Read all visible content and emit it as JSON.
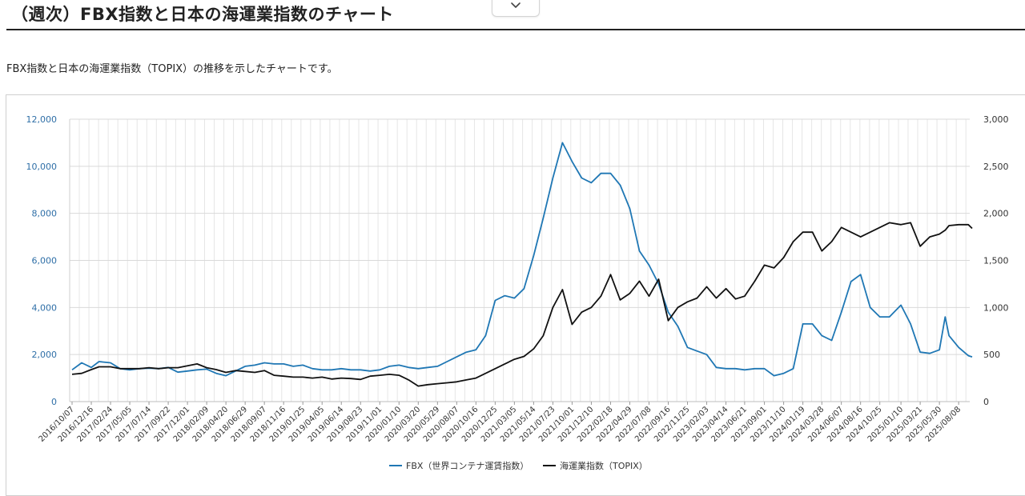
{
  "header": {
    "title": "（週次）FBX指数と日本の海運業指数のチャート",
    "description": "FBX指数と日本の海運業指数（TOPIX）の推移を示したチャートです。"
  },
  "icons": {
    "collapse": "chevron-down-icon"
  },
  "colors": {
    "fbx": "#1f77b4",
    "topix": "#111111",
    "left_axis": "#2f6fa7",
    "grid": "#d9d9d9"
  },
  "chart_data": {
    "type": "line",
    "title": "",
    "xlabel": "",
    "y_left": {
      "label": "",
      "lim": [
        0,
        12000
      ],
      "ticks": [
        "0",
        "2,000",
        "4,000",
        "6,000",
        "8,000",
        "10,000",
        "12,000"
      ]
    },
    "y_right": {
      "label": "",
      "lim": [
        0,
        3000
      ],
      "ticks": [
        "0",
        "500",
        "1,000",
        "1,500",
        "2,000",
        "2,500",
        "3,000"
      ]
    },
    "x_tick_labels": [
      "2016/10/07",
      "2016/12/16",
      "2017/02/24",
      "2017/05/05",
      "2017/07/14",
      "2017/09/22",
      "2017/12/01",
      "2018/02/09",
      "2018/04/20",
      "2018/06/29",
      "2018/09/07",
      "2018/11/16",
      "2019/01/25",
      "2019/04/05",
      "2019/06/14",
      "2019/08/23",
      "2019/11/01",
      "2020/01/10",
      "2020/03/20",
      "2020/05/29",
      "2020/08/07",
      "2020/10/16",
      "2020/12/25",
      "2021/03/05",
      "2021/05/14",
      "2021/07/23",
      "2021/10/01",
      "2021/12/10",
      "2022/02/18",
      "2022/04/29",
      "2022/07/08",
      "2022/09/16",
      "2022/11/25",
      "2023/02/03",
      "2023/04/14",
      "2023/06/21",
      "2023/09/01",
      "2023/11/10",
      "2024/01/19",
      "2024/03/28",
      "2024/06/07",
      "2024/08/16",
      "2024/10/25",
      "2025/01/10",
      "2025/03/21",
      "2025/05/30",
      "2025/08/08"
    ],
    "grid": true,
    "legend_position": "bottom-center",
    "series": [
      {
        "name": "FBX（世界コンテナ運賃指数）",
        "axis": "left",
        "points": [
          [
            "2016/10/07",
            1350
          ],
          [
            "2016/11/11",
            1650
          ],
          [
            "2016/12/16",
            1450
          ],
          [
            "2017/01/13",
            1700
          ],
          [
            "2017/02/24",
            1650
          ],
          [
            "2017/03/31",
            1400
          ],
          [
            "2017/05/05",
            1350
          ],
          [
            "2017/06/09",
            1400
          ],
          [
            "2017/07/14",
            1420
          ],
          [
            "2017/08/18",
            1400
          ],
          [
            "2017/09/22",
            1450
          ],
          [
            "2017/10/27",
            1250
          ],
          [
            "2017/12/01",
            1300
          ],
          [
            "2018/01/05",
            1350
          ],
          [
            "2018/02/09",
            1380
          ],
          [
            "2018/03/16",
            1200
          ],
          [
            "2018/04/20",
            1100
          ],
          [
            "2018/05/25",
            1300
          ],
          [
            "2018/06/29",
            1500
          ],
          [
            "2018/08/03",
            1550
          ],
          [
            "2018/09/07",
            1650
          ],
          [
            "2018/10/12",
            1600
          ],
          [
            "2018/11/16",
            1600
          ],
          [
            "2018/12/21",
            1500
          ],
          [
            "2019/01/25",
            1550
          ],
          [
            "2019/03/01",
            1400
          ],
          [
            "2019/04/05",
            1350
          ],
          [
            "2019/05/10",
            1350
          ],
          [
            "2019/06/14",
            1400
          ],
          [
            "2019/07/19",
            1350
          ],
          [
            "2019/08/23",
            1350
          ],
          [
            "2019/09/27",
            1300
          ],
          [
            "2019/11/01",
            1350
          ],
          [
            "2019/12/06",
            1500
          ],
          [
            "2020/01/10",
            1550
          ],
          [
            "2020/02/14",
            1450
          ],
          [
            "2020/03/20",
            1400
          ],
          [
            "2020/04/24",
            1450
          ],
          [
            "2020/05/29",
            1500
          ],
          [
            "2020/07/03",
            1700
          ],
          [
            "2020/08/07",
            1900
          ],
          [
            "2020/09/11",
            2100
          ],
          [
            "2020/10/16",
            2200
          ],
          [
            "2020/11/20",
            2800
          ],
          [
            "2020/12/25",
            4300
          ],
          [
            "2021/01/29",
            4500
          ],
          [
            "2021/03/05",
            4400
          ],
          [
            "2021/04/09",
            4800
          ],
          [
            "2021/05/14",
            6200
          ],
          [
            "2021/06/18",
            7800
          ],
          [
            "2021/07/23",
            9500
          ],
          [
            "2021/08/27",
            11000
          ],
          [
            "2021/10/01",
            10200
          ],
          [
            "2021/11/05",
            9500
          ],
          [
            "2021/12/10",
            9300
          ],
          [
            "2022/01/14",
            9700
          ],
          [
            "2022/02/18",
            9700
          ],
          [
            "2022/03/25",
            9200
          ],
          [
            "2022/04/29",
            8200
          ],
          [
            "2022/06/03",
            6400
          ],
          [
            "2022/07/08",
            5800
          ],
          [
            "2022/08/12",
            5000
          ],
          [
            "2022/09/16",
            3800
          ],
          [
            "2022/10/21",
            3200
          ],
          [
            "2022/11/25",
            2300
          ],
          [
            "2022/12/30",
            2150
          ],
          [
            "2023/02/03",
            2000
          ],
          [
            "2023/03/10",
            1450
          ],
          [
            "2023/04/14",
            1400
          ],
          [
            "2023/05/19",
            1400
          ],
          [
            "2023/06/21",
            1350
          ],
          [
            "2023/07/28",
            1400
          ],
          [
            "2023/09/01",
            1400
          ],
          [
            "2023/10/06",
            1100
          ],
          [
            "2023/11/10",
            1200
          ],
          [
            "2023/12/15",
            1400
          ],
          [
            "2024/01/19",
            3300
          ],
          [
            "2024/02/23",
            3300
          ],
          [
            "2024/03/28",
            2800
          ],
          [
            "2024/05/03",
            2600
          ],
          [
            "2024/06/07",
            3800
          ],
          [
            "2024/07/12",
            5100
          ],
          [
            "2024/08/16",
            5400
          ],
          [
            "2024/09/20",
            4000
          ],
          [
            "2024/10/25",
            3600
          ],
          [
            "2024/11/29",
            3600
          ],
          [
            "2025/01/10",
            4100
          ],
          [
            "2025/02/14",
            3300
          ],
          [
            "2025/03/21",
            2100
          ],
          [
            "2025/04/25",
            2050
          ],
          [
            "2025/05/30",
            2200
          ],
          [
            "2025/06/20",
            3600
          ],
          [
            "2025/07/04",
            2800
          ],
          [
            "2025/08/08",
            2300
          ],
          [
            "2025/09/12",
            1950
          ],
          [
            "2025/09/26",
            1900
          ]
        ]
      },
      {
        "name": "海運業指数（TOPIX）",
        "axis": "right",
        "points": [
          [
            "2016/10/07",
            290
          ],
          [
            "2016/11/11",
            300
          ],
          [
            "2016/12/16",
            340
          ],
          [
            "2017/01/13",
            370
          ],
          [
            "2017/02/24",
            370
          ],
          [
            "2017/03/31",
            350
          ],
          [
            "2017/05/05",
            350
          ],
          [
            "2017/06/09",
            350
          ],
          [
            "2017/07/14",
            360
          ],
          [
            "2017/08/18",
            350
          ],
          [
            "2017/09/22",
            360
          ],
          [
            "2017/10/27",
            360
          ],
          [
            "2017/12/01",
            380
          ],
          [
            "2018/01/05",
            400
          ],
          [
            "2018/02/09",
            360
          ],
          [
            "2018/03/16",
            340
          ],
          [
            "2018/04/20",
            310
          ],
          [
            "2018/05/25",
            330
          ],
          [
            "2018/06/29",
            320
          ],
          [
            "2018/08/03",
            310
          ],
          [
            "2018/09/07",
            330
          ],
          [
            "2018/10/12",
            280
          ],
          [
            "2018/11/16",
            270
          ],
          [
            "2018/12/21",
            260
          ],
          [
            "2019/01/25",
            260
          ],
          [
            "2019/03/01",
            250
          ],
          [
            "2019/04/05",
            260
          ],
          [
            "2019/05/10",
            240
          ],
          [
            "2019/06/14",
            250
          ],
          [
            "2019/07/19",
            245
          ],
          [
            "2019/08/23",
            235
          ],
          [
            "2019/09/27",
            270
          ],
          [
            "2019/11/01",
            280
          ],
          [
            "2019/12/06",
            290
          ],
          [
            "2020/01/10",
            280
          ],
          [
            "2020/02/14",
            230
          ],
          [
            "2020/03/20",
            165
          ],
          [
            "2020/04/24",
            180
          ],
          [
            "2020/05/29",
            190
          ],
          [
            "2020/07/03",
            200
          ],
          [
            "2020/08/07",
            210
          ],
          [
            "2020/09/11",
            230
          ],
          [
            "2020/10/16",
            250
          ],
          [
            "2020/11/20",
            300
          ],
          [
            "2020/12/25",
            350
          ],
          [
            "2021/01/29",
            400
          ],
          [
            "2021/03/05",
            450
          ],
          [
            "2021/04/09",
            480
          ],
          [
            "2021/05/14",
            560
          ],
          [
            "2021/06/18",
            700
          ],
          [
            "2021/07/23",
            1000
          ],
          [
            "2021/08/27",
            1190
          ],
          [
            "2021/10/01",
            820
          ],
          [
            "2021/11/05",
            950
          ],
          [
            "2021/12/10",
            1000
          ],
          [
            "2022/01/14",
            1120
          ],
          [
            "2022/02/18",
            1350
          ],
          [
            "2022/03/25",
            1080
          ],
          [
            "2022/04/29",
            1150
          ],
          [
            "2022/06/03",
            1280
          ],
          [
            "2022/07/08",
            1120
          ],
          [
            "2022/08/12",
            1300
          ],
          [
            "2022/09/16",
            860
          ],
          [
            "2022/10/21",
            1000
          ],
          [
            "2022/11/25",
            1060
          ],
          [
            "2022/12/30",
            1100
          ],
          [
            "2023/02/03",
            1220
          ],
          [
            "2023/03/10",
            1100
          ],
          [
            "2023/04/14",
            1200
          ],
          [
            "2023/05/19",
            1090
          ],
          [
            "2023/06/21",
            1120
          ],
          [
            "2023/07/28",
            1280
          ],
          [
            "2023/09/01",
            1450
          ],
          [
            "2023/10/06",
            1420
          ],
          [
            "2023/11/10",
            1530
          ],
          [
            "2023/12/15",
            1700
          ],
          [
            "2024/01/19",
            1800
          ],
          [
            "2024/02/23",
            1800
          ],
          [
            "2024/03/28",
            1600
          ],
          [
            "2024/05/03",
            1700
          ],
          [
            "2024/06/07",
            1850
          ],
          [
            "2024/07/12",
            1800
          ],
          [
            "2024/08/16",
            1750
          ],
          [
            "2024/09/20",
            1800
          ],
          [
            "2024/10/25",
            1850
          ],
          [
            "2024/11/29",
            1900
          ],
          [
            "2025/01/10",
            1880
          ],
          [
            "2025/02/14",
            1900
          ],
          [
            "2025/03/21",
            1650
          ],
          [
            "2025/04/25",
            1750
          ],
          [
            "2025/05/30",
            1780
          ],
          [
            "2025/06/20",
            1820
          ],
          [
            "2025/07/04",
            1870
          ],
          [
            "2025/08/08",
            1880
          ],
          [
            "2025/09/12",
            1880
          ],
          [
            "2025/09/26",
            1840
          ]
        ]
      }
    ]
  }
}
